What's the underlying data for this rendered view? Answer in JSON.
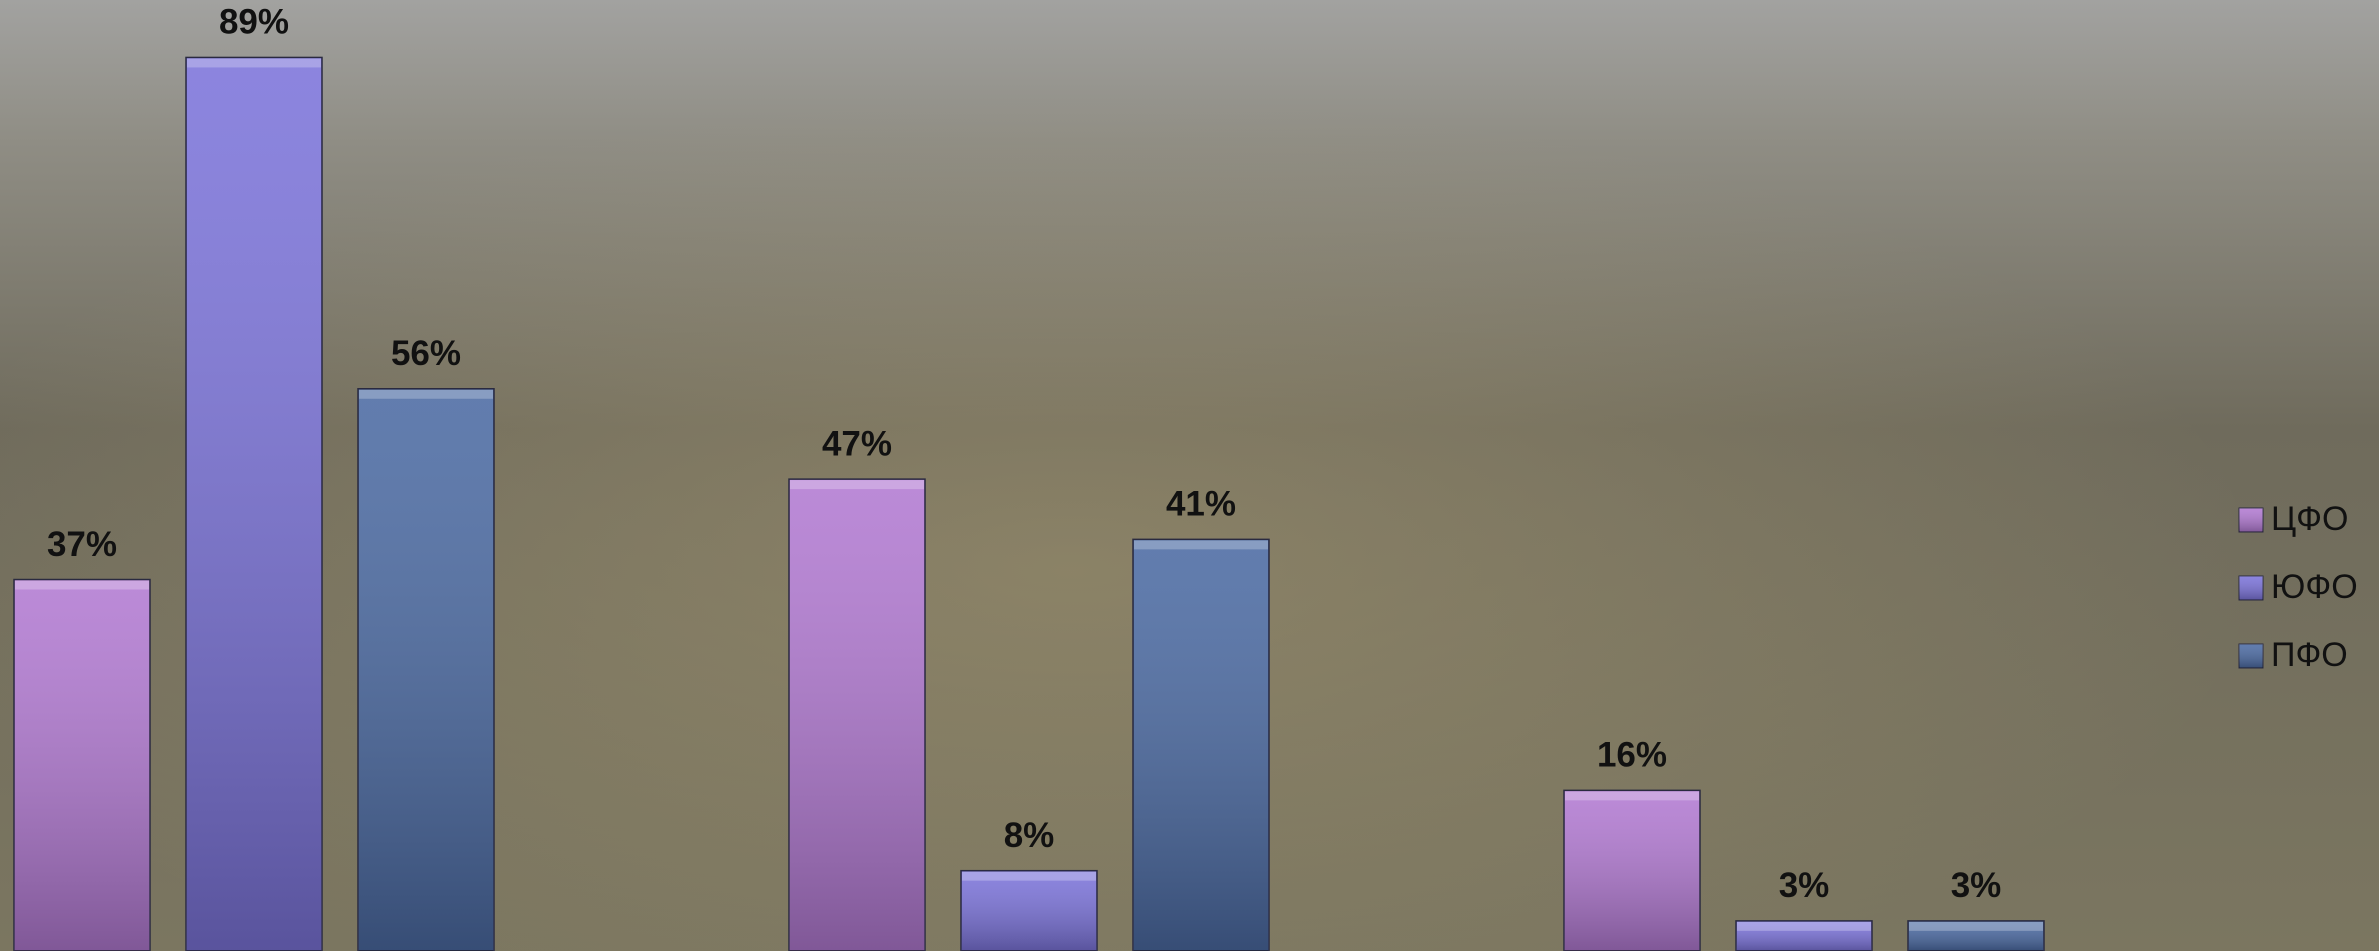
{
  "chart_data": {
    "type": "bar",
    "categories": [
      null,
      null,
      null
    ],
    "series": [
      {
        "name": "ЦФО",
        "color": "#b27ad2",
        "values": [
          37,
          47,
          16
        ],
        "value_labels": [
          "37%",
          "47%",
          "16%"
        ]
      },
      {
        "name": "ЮФО",
        "color": "#7c74da",
        "values": [
          89,
          8,
          3
        ],
        "value_labels": [
          "89%",
          "8%",
          "3%"
        ]
      },
      {
        "name": "ПФО",
        "color": "#4c6ba3",
        "values": [
          56,
          41,
          3
        ],
        "value_labels": [
          "56%",
          "41%",
          "3%"
        ]
      }
    ],
    "legend": "right"
  }
}
